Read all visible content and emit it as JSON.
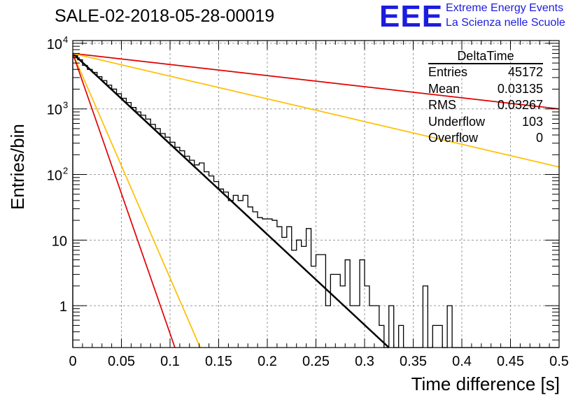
{
  "title": "SALE-02-2018-05-28-00019",
  "logo": {
    "mark": "EEE",
    "line1": "Extreme Energy Events",
    "line2": "La Scienza nelle Scuole"
  },
  "stats": {
    "name": "DeltaTime",
    "rows": [
      {
        "label": "Entries",
        "value": "45172"
      },
      {
        "label": "Mean",
        "value": "0.03135"
      },
      {
        "label": "RMS",
        "value": "0.03267"
      },
      {
        "label": "Underflow",
        "value": "103"
      },
      {
        "label": "Overflow",
        "value": "0"
      }
    ]
  },
  "colors": {
    "histogram": "#000000",
    "fit": "#000000",
    "red": "#e00000",
    "orange": "#ffbf00",
    "grid": "#9a9a9a"
  },
  "chart_data": {
    "type": "histogram",
    "xlabel": "Time difference [s]",
    "ylabel": "Entries/bin",
    "xlim": [
      0,
      0.5
    ],
    "ylim": [
      0.23,
      11000
    ],
    "yscale": "log",
    "grid": true,
    "x_ticks": [
      "0",
      "0.05",
      "0.1",
      "0.15",
      "0.2",
      "0.25",
      "0.3",
      "0.35",
      "0.4",
      "0.45",
      "0.5"
    ],
    "y_ticks": [
      {
        "value": 1,
        "label": "1"
      },
      {
        "value": 10,
        "label": "10"
      },
      {
        "value": 100,
        "label": "10",
        "exp": "2"
      },
      {
        "value": 1000,
        "label": "10",
        "exp": "3"
      },
      {
        "value": 10000,
        "label": "10",
        "exp": "4"
      }
    ],
    "bin_width": 0.005,
    "bin_counts": [
      6500,
      5600,
      4600,
      4000,
      3600,
      3100,
      2700,
      2300,
      2000,
      1700,
      1450,
      1250,
      1050,
      900,
      800,
      700,
      580,
      500,
      420,
      370,
      310,
      260,
      230,
      190,
      165,
      140,
      150,
      110,
      95,
      78,
      60,
      54,
      40,
      48,
      40,
      48,
      32,
      27,
      22,
      21,
      21,
      20,
      16,
      11,
      16,
      7,
      10,
      8,
      15,
      4,
      6,
      6,
      1,
      3,
      3,
      2,
      5,
      1,
      1,
      5,
      2,
      1,
      1,
      0.5,
      0,
      1,
      0,
      0.5,
      0,
      0,
      0,
      0,
      2,
      0,
      0.5,
      0.5,
      0,
      1,
      0,
      0,
      0,
      0,
      0,
      0,
      0,
      0,
      0,
      0,
      0,
      0,
      0,
      0,
      0,
      0,
      0,
      0,
      0,
      0,
      0,
      0
    ],
    "series": [
      {
        "kind": "histogram",
        "color": "#000000"
      },
      {
        "kind": "fit",
        "color": "#000000",
        "x": [
          0,
          0.325
        ],
        "y": [
          7000,
          0.23
        ]
      },
      {
        "kind": "line",
        "color": "#e00000",
        "x": [
          0,
          0.5
        ],
        "y": [
          7000,
          1000
        ]
      },
      {
        "kind": "line",
        "color": "#ffbf00",
        "x": [
          0,
          0.5
        ],
        "y": [
          7000,
          130
        ]
      },
      {
        "kind": "line",
        "color": "#ffbf00",
        "x": [
          0,
          0.131
        ],
        "y": [
          7000,
          0.23
        ]
      },
      {
        "kind": "line",
        "color": "#e00000",
        "x": [
          0,
          0.105
        ],
        "y": [
          7000,
          0.23
        ]
      }
    ]
  }
}
